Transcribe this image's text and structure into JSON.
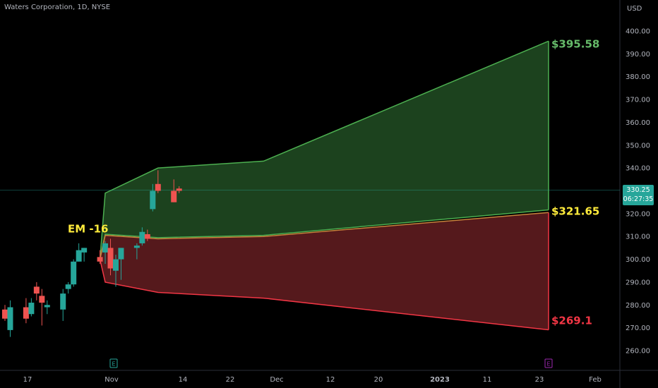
{
  "header": {
    "title": "Waters Corporation, 1D, NYSE"
  },
  "axis": {
    "currency": "USD"
  },
  "last_price": {
    "value": "330.25",
    "countdown": "06:27:35"
  },
  "annotations": {
    "em_label": "EM -16",
    "upper_label": "$395.58",
    "mid_label": "$321.65",
    "lower_label": "$269.1"
  },
  "events": {
    "earnings_1": "E",
    "earnings_2": "E"
  },
  "colors": {
    "background": "#000000",
    "up_candle": "#26a69a",
    "down_candle": "#ef5350",
    "upper_zone_fill": "#1e4620",
    "upper_zone_stroke": "#4caf50",
    "lower_zone_fill": "#5a1a1e",
    "lower_zone_stroke": "#f23645",
    "mid_line": "#c8843c",
    "upper_label_color": "#66bb6a",
    "mid_label_color": "#ffeb3b",
    "lower_label_color": "#f23645",
    "em_label_color": "#ffeb3b"
  },
  "chart_data": {
    "type": "candlestick",
    "title": "Waters Corporation, 1D, NYSE",
    "y_unit": "USD",
    "ylim": [
      255,
      405
    ],
    "y_ticks": [
      "260.00",
      "270.00",
      "280.00",
      "290.00",
      "300.00",
      "310.00",
      "320.00",
      "330.00",
      "340.00",
      "350.00",
      "360.00",
      "370.00",
      "380.00",
      "390.00",
      "400.00"
    ],
    "x_tick_labels": [
      "17",
      "Nov",
      "14",
      "22",
      "Dec",
      "12",
      "20",
      "2023",
      "11",
      "23",
      "Feb"
    ],
    "candles": [
      {
        "date": "2022-10-13",
        "open": 278,
        "high": 280,
        "low": 273,
        "close": 274
      },
      {
        "date": "2022-10-14",
        "open": 269,
        "high": 282,
        "low": 266,
        "close": 279
      },
      {
        "date": "2022-10-17",
        "open": 279,
        "high": 283,
        "low": 272,
        "close": 274
      },
      {
        "date": "2022-10-18",
        "open": 276,
        "high": 283,
        "low": 275,
        "close": 281
      },
      {
        "date": "2022-10-19",
        "open": 288,
        "high": 290,
        "low": 282,
        "close": 285
      },
      {
        "date": "2022-10-20",
        "open": 284,
        "high": 287,
        "low": 271,
        "close": 281
      },
      {
        "date": "2022-10-21",
        "open": 279,
        "high": 282,
        "low": 276,
        "close": 280
      },
      {
        "date": "2022-10-24",
        "open": 278,
        "high": 287,
        "low": 273,
        "close": 285
      },
      {
        "date": "2022-10-25",
        "open": 287,
        "high": 290,
        "low": 285,
        "close": 289
      },
      {
        "date": "2022-10-26",
        "open": 289,
        "high": 300,
        "low": 288,
        "close": 299
      },
      {
        "date": "2022-10-27",
        "open": 299,
        "high": 307,
        "low": 299,
        "close": 304
      },
      {
        "date": "2022-10-28",
        "open": 303,
        "high": 305,
        "low": 299,
        "close": 305
      },
      {
        "date": "2022-10-31",
        "open": 301,
        "high": 304,
        "low": 298,
        "close": 299
      },
      {
        "date": "2022-11-01",
        "open": 303,
        "high": 308,
        "low": 298,
        "close": 307
      },
      {
        "date": "2022-11-02",
        "open": 305,
        "high": 309,
        "low": 293,
        "close": 296
      },
      {
        "date": "2022-11-03",
        "open": 295,
        "high": 302,
        "low": 288,
        "close": 300
      },
      {
        "date": "2022-11-04",
        "open": 300,
        "high": 305,
        "low": 291,
        "close": 305
      },
      {
        "date": "2022-11-07",
        "open": 305,
        "high": 307,
        "low": 300,
        "close": 306
      },
      {
        "date": "2022-11-08",
        "open": 307,
        "high": 314,
        "low": 306,
        "close": 312
      },
      {
        "date": "2022-11-09",
        "open": 311,
        "high": 313,
        "low": 308,
        "close": 309
      },
      {
        "date": "2022-11-10",
        "open": 322,
        "high": 333,
        "low": 321,
        "close": 330
      },
      {
        "date": "2022-11-11",
        "open": 333,
        "high": 339,
        "low": 329,
        "close": 330
      },
      {
        "date": "2022-11-14",
        "open": 330,
        "high": 335,
        "low": 325,
        "close": 325
      },
      {
        "date": "2022-11-15",
        "open": 331,
        "high": 332,
        "low": 329,
        "close": 330
      }
    ],
    "expected_move": {
      "label": "EM -16",
      "upper": [
        {
          "date": "2022-10-31",
          "value": 300
        },
        {
          "date": "2022-11-01",
          "value": 329
        },
        {
          "date": "2022-11-11",
          "value": 340
        },
        {
          "date": "2022-12-01",
          "value": 343
        },
        {
          "date": "2023-01-24",
          "value": 395.58
        }
      ],
      "mid_upper": [
        {
          "date": "2022-10-31",
          "value": 300
        },
        {
          "date": "2022-11-01",
          "value": 311
        },
        {
          "date": "2022-11-11",
          "value": 309.5
        },
        {
          "date": "2022-12-01",
          "value": 310.5
        },
        {
          "date": "2023-01-24",
          "value": 321.65
        }
      ],
      "mid_lower": [
        {
          "date": "2022-10-31",
          "value": 300
        },
        {
          "date": "2022-11-01",
          "value": 310.5
        },
        {
          "date": "2022-11-11",
          "value": 309
        },
        {
          "date": "2022-12-01",
          "value": 310
        },
        {
          "date": "2023-01-24",
          "value": 320.5
        }
      ],
      "lower": [
        {
          "date": "2022-10-31",
          "value": 300
        },
        {
          "date": "2022-11-01",
          "value": 290
        },
        {
          "date": "2022-11-11",
          "value": 285.5
        },
        {
          "date": "2022-12-01",
          "value": 283
        },
        {
          "date": "2023-01-24",
          "value": 269.1
        }
      ]
    },
    "last_price": 330.25,
    "event_markers": [
      "E",
      "E"
    ]
  }
}
